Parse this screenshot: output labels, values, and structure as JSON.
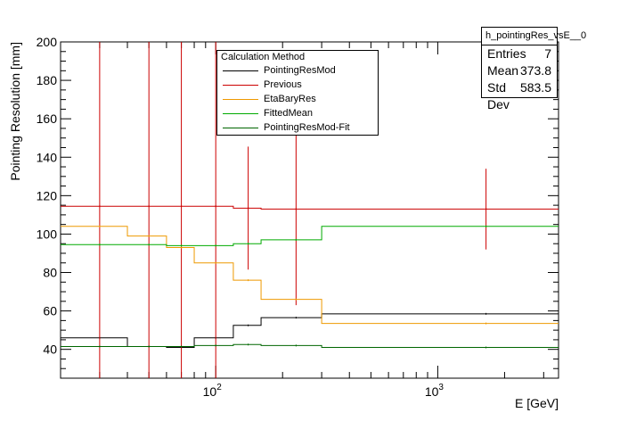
{
  "chart_data": {
    "type": "line",
    "xlabel": "E [GeV]",
    "ylabel": "Pointing Resolution [mm]",
    "xscale": "log",
    "xlim": [
      20,
      3500
    ],
    "ylim": [
      25,
      200
    ],
    "yticks": [
      40,
      60,
      80,
      100,
      120,
      140,
      160,
      180,
      200
    ],
    "xtick_major": [
      {
        "value": 100,
        "label": "10",
        "exp": "2"
      },
      {
        "value": 1000,
        "label": "10",
        "exp": "3"
      }
    ],
    "bin_edges": [
      20,
      40,
      60,
      80,
      120,
      160,
      300,
      3500
    ],
    "bin_centers": [
      30,
      50,
      70,
      100,
      140,
      230,
      1650
    ],
    "legend": {
      "title": "Calculation Method",
      "placement": "top-center",
      "entries": [
        {
          "label": "PointingResMod",
          "color": "#000000"
        },
        {
          "label": "Previous",
          "color": "#cc0000"
        },
        {
          "label": "EtaBaryRes",
          "color": "#ee9900"
        },
        {
          "label": "FittedMean",
          "color": "#00aa00"
        },
        {
          "label": "PointingResMod-Fit",
          "color": "#006600"
        }
      ]
    },
    "series": [
      {
        "name": "PointingResMod",
        "color": "#000000",
        "values": [
          46,
          41.5,
          41,
          46,
          52.5,
          56.5,
          58.5
        ]
      },
      {
        "name": "Previous",
        "color": "#cc0000",
        "values": [
          114.5,
          114.5,
          114.5,
          114.5,
          113.5,
          113,
          113
        ],
        "errors": [
          999,
          999,
          999,
          999,
          32,
          50,
          21
        ]
      },
      {
        "name": "EtaBaryRes",
        "color": "#ee9900",
        "values": [
          104,
          99,
          93,
          85,
          76,
          66,
          53.5
        ]
      },
      {
        "name": "FittedMean",
        "color": "#00aa00",
        "values": [
          94.5,
          94.5,
          94,
          94,
          95,
          97,
          104
        ]
      },
      {
        "name": "PointingResMod-Fit",
        "color": "#006600",
        "values": [
          41.5,
          41.5,
          41.5,
          42,
          42.5,
          42,
          41
        ]
      }
    ]
  },
  "stats": {
    "title": "h_pointingRes_vsE__0",
    "rows": [
      {
        "label": "Entries",
        "value": "7"
      },
      {
        "label": "Mean",
        "value": "373.8"
      },
      {
        "label": "Std Dev",
        "value": "583.5"
      }
    ]
  }
}
